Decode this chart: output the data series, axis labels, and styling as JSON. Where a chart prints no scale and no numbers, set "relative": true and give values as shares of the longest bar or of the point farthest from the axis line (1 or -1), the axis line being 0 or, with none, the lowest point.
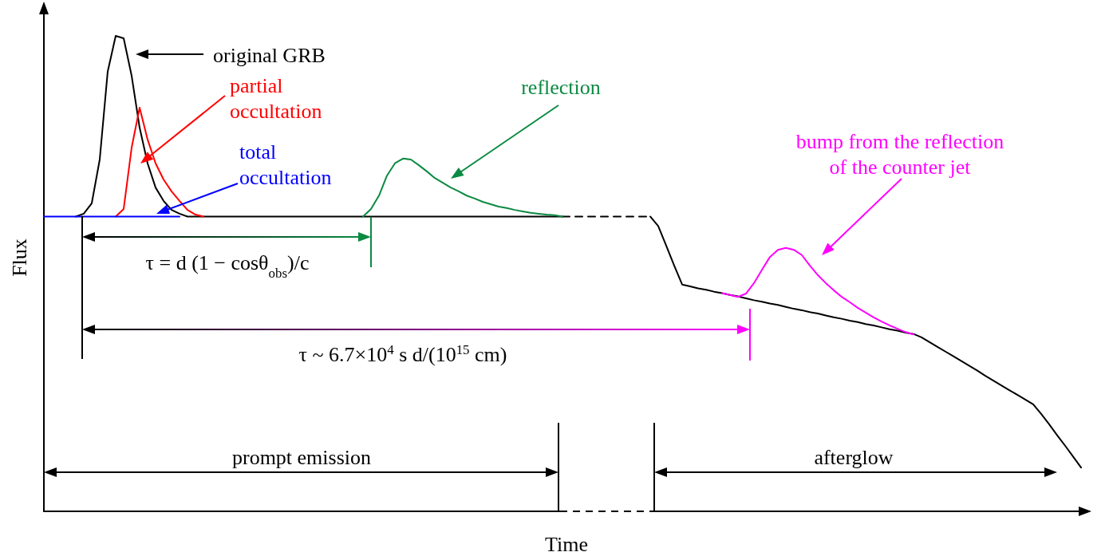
{
  "chart_data": {
    "type": "line",
    "relative": true,
    "marker": "none",
    "xlabel": "Time",
    "ylabel": "Flux",
    "categories": [
      null,
      null,
      null,
      null,
      null,
      null,
      null,
      null,
      null,
      null,
      null,
      null,
      null,
      null,
      null,
      null,
      null,
      null,
      null,
      null,
      null,
      null,
      null,
      null,
      null,
      null,
      null,
      null,
      null,
      null,
      null,
      null,
      null,
      null,
      null,
      null,
      null,
      null,
      null,
      null,
      null,
      null,
      null,
      null,
      null,
      null,
      null,
      null,
      null,
      null,
      null,
      null,
      null,
      null,
      null,
      null,
      null,
      null,
      null,
      null,
      null,
      null,
      null,
      null,
      null,
      null,
      null,
      null,
      null,
      null,
      null,
      null,
      null,
      null,
      null,
      null,
      null,
      null,
      null,
      null,
      null,
      null,
      null,
      null,
      null,
      null,
      null,
      null,
      null,
      null,
      null,
      null,
      null,
      null,
      null,
      null,
      null,
      null,
      null,
      null,
      null,
      null,
      null,
      null,
      null,
      null,
      null,
      null,
      null,
      null,
      null,
      null,
      null,
      null,
      null,
      null,
      null,
      null,
      null,
      null,
      null,
      null,
      null,
      null,
      null,
      null,
      null,
      null,
      null,
      null,
      null,
      null
    ],
    "series": [
      {
        "color": "#000000",
        "values": [
          null,
          null,
          null,
          null,
          0.62,
          0.626,
          0.648,
          0.74,
          0.925,
          1,
          0.995,
          0.916,
          0.807,
          0.732,
          0.681,
          0.653,
          0.634,
          0.626,
          0.62,
          0.62,
          0.62,
          0.62,
          0.62,
          0.62,
          0.62,
          0.62,
          0.62,
          0.62,
          0.62,
          0.62,
          0.62,
          0.62,
          0.62,
          0.62,
          0.62,
          0.62,
          0.62,
          0.62,
          0.62,
          0.62,
          0.62,
          0.62,
          0.62,
          0.62,
          0.62,
          0.62,
          0.62,
          0.62,
          0.62,
          0.62,
          0.62,
          0.62,
          0.62,
          0.62,
          0.62,
          0.62,
          0.62,
          0.62,
          0.62,
          0.62,
          0.62,
          0.62,
          0.62,
          0.62,
          0.62,
          0.62,
          null,
          null,
          null,
          null,
          null,
          null,
          null,
          null,
          null,
          null,
          null,
          null,
          null,
          null,
          null,
          null,
          null,
          null,
          null,
          null,
          null,
          null,
          null,
          null,
          null,
          null,
          null,
          null,
          null,
          null,
          null,
          null,
          null,
          null,
          null,
          null,
          null,
          null,
          null,
          null,
          null,
          null,
          null,
          null,
          null,
          null,
          null,
          null,
          null,
          null,
          null,
          null,
          null,
          null,
          null,
          null,
          null,
          null,
          null,
          null,
          null,
          null,
          null,
          null,
          null,
          null
        ]
      },
      {
        "color": "#000000",
        "line_style": "dashed",
        "values": [
          null,
          null,
          null,
          null,
          null,
          null,
          null,
          null,
          null,
          null,
          null,
          null,
          null,
          null,
          null,
          null,
          null,
          null,
          null,
          null,
          null,
          null,
          null,
          null,
          null,
          null,
          null,
          null,
          null,
          null,
          null,
          null,
          null,
          null,
          null,
          null,
          null,
          null,
          null,
          null,
          null,
          null,
          null,
          null,
          null,
          null,
          null,
          null,
          null,
          null,
          null,
          null,
          null,
          null,
          null,
          null,
          null,
          null,
          null,
          null,
          null,
          null,
          null,
          null,
          null,
          0.62,
          0.62,
          0.62,
          0.62,
          0.62,
          0.62,
          0.62,
          0.62,
          0.62,
          0.62,
          0.62,
          0.62,
          null,
          null,
          null,
          null,
          null,
          null,
          null,
          null,
          null,
          null,
          null,
          null,
          null,
          null,
          null,
          null,
          null,
          null,
          null,
          null,
          null,
          null,
          null,
          null,
          null,
          null,
          null,
          null,
          null,
          null,
          null,
          null,
          null,
          null,
          null,
          null,
          null,
          null,
          null,
          null,
          null,
          null,
          null,
          null,
          null,
          null,
          null,
          null,
          null,
          null,
          null,
          null,
          null,
          null,
          null
        ]
      },
      {
        "color": "#000000",
        "values": [
          null,
          null,
          null,
          null,
          null,
          null,
          null,
          null,
          null,
          null,
          null,
          null,
          null,
          null,
          null,
          null,
          null,
          null,
          null,
          null,
          null,
          null,
          null,
          null,
          null,
          null,
          null,
          null,
          null,
          null,
          null,
          null,
          null,
          null,
          null,
          null,
          null,
          null,
          null,
          null,
          null,
          null,
          null,
          null,
          null,
          null,
          null,
          null,
          null,
          null,
          null,
          null,
          null,
          null,
          null,
          null,
          null,
          null,
          null,
          null,
          null,
          null,
          null,
          null,
          null,
          null,
          null,
          null,
          null,
          null,
          null,
          null,
          null,
          null,
          null,
          null,
          0.62,
          0.6,
          0.559,
          0.517,
          0.477,
          0.473,
          0.469,
          0.466,
          0.462,
          0.459,
          0.455,
          0.452,
          0.448,
          0.444,
          0.441,
          0.437,
          0.434,
          0.43,
          0.426,
          0.423,
          0.419,
          0.416,
          0.412,
          0.408,
          0.405,
          0.401,
          0.398,
          0.394,
          0.391,
          0.387,
          0.383,
          0.38,
          0.376,
          0.373,
          0.366,
          0.356,
          0.346,
          0.336,
          0.326,
          0.316,
          0.306,
          0.296,
          0.285,
          0.275,
          0.265,
          0.255,
          0.245,
          0.235,
          0.225,
          0.205,
          0.183,
          0.16,
          0.138,
          0.115,
          0.092,
          null
        ]
      },
      {
        "color": "#0b8a42",
        "values": [
          null,
          null,
          null,
          null,
          null,
          null,
          null,
          null,
          null,
          null,
          null,
          null,
          null,
          null,
          null,
          null,
          null,
          null,
          null,
          null,
          null,
          null,
          null,
          null,
          null,
          null,
          null,
          null,
          null,
          null,
          null,
          null,
          null,
          null,
          null,
          null,
          null,
          null,
          null,
          null,
          0.62,
          0.636,
          0.664,
          0.706,
          0.732,
          0.742,
          0.74,
          0.728,
          0.715,
          0.701,
          0.691,
          0.681,
          0.673,
          0.664,
          0.658,
          0.651,
          0.646,
          0.641,
          0.638,
          0.634,
          0.631,
          0.628,
          0.626,
          0.624,
          0.623,
          0.62,
          null,
          null,
          null,
          null,
          null,
          null,
          null,
          null,
          null,
          null,
          null,
          null,
          null,
          null,
          null,
          null,
          null,
          null,
          null,
          null,
          null,
          null,
          null,
          null,
          null,
          null,
          null,
          null,
          null,
          null,
          null,
          null,
          null,
          null,
          null,
          null,
          null,
          null,
          null,
          null,
          null,
          null,
          null,
          null,
          null,
          null,
          null,
          null,
          null,
          null,
          null,
          null,
          null,
          null,
          null,
          null,
          null,
          null,
          null,
          null,
          null,
          null,
          null,
          null,
          null,
          null
        ]
      },
      {
        "color": "#ff00ff",
        "values": [
          null,
          null,
          null,
          null,
          null,
          null,
          null,
          null,
          null,
          null,
          null,
          null,
          null,
          null,
          null,
          null,
          null,
          null,
          null,
          null,
          null,
          null,
          null,
          null,
          null,
          null,
          null,
          null,
          null,
          null,
          null,
          null,
          null,
          null,
          null,
          null,
          null,
          null,
          null,
          null,
          null,
          null,
          null,
          null,
          null,
          null,
          null,
          null,
          null,
          null,
          null,
          null,
          null,
          null,
          null,
          null,
          null,
          null,
          null,
          null,
          null,
          null,
          null,
          null,
          null,
          null,
          null,
          null,
          null,
          null,
          null,
          null,
          null,
          null,
          null,
          null,
          null,
          null,
          null,
          null,
          null,
          null,
          null,
          null,
          null,
          0.459,
          0.455,
          0.451,
          0.458,
          0.48,
          0.508,
          0.535,
          0.55,
          0.554,
          0.55,
          0.539,
          0.517,
          0.497,
          0.48,
          0.465,
          0.451,
          0.44,
          0.428,
          0.418,
          0.408,
          0.399,
          0.391,
          0.384,
          0.377,
          0.372,
          null,
          null,
          null,
          null,
          null,
          null,
          null,
          null,
          null,
          null,
          null,
          null,
          null,
          null,
          null,
          null,
          null,
          null,
          null,
          null,
          null,
          null
        ]
      },
      {
        "color": "#ff0000",
        "values": [
          null,
          null,
          null,
          null,
          null,
          null,
          null,
          null,
          null,
          0.62,
          0.636,
          0.765,
          0.849,
          0.782,
          0.732,
          0.698,
          0.673,
          0.653,
          0.634,
          0.624,
          0.62,
          null,
          null,
          null,
          null,
          null,
          null,
          null,
          null,
          null,
          null,
          null,
          null,
          null,
          null,
          null,
          null,
          null,
          null,
          null,
          null,
          null,
          null,
          null,
          null,
          null,
          null,
          null,
          null,
          null,
          null,
          null,
          null,
          null,
          null,
          null,
          null,
          null,
          null,
          null,
          null,
          null,
          null,
          null,
          null,
          null,
          null,
          null,
          null,
          null,
          null,
          null,
          null,
          null,
          null,
          null,
          null,
          null,
          null,
          null,
          null,
          null,
          null,
          null,
          null,
          null,
          null,
          null,
          null,
          null,
          null,
          null,
          null,
          null,
          null,
          null,
          null,
          null,
          null,
          null,
          null,
          null,
          null,
          null,
          null,
          null,
          null,
          null,
          null,
          null,
          null,
          null,
          null,
          null,
          null,
          null,
          null,
          null,
          null,
          null,
          null,
          null,
          null,
          null,
          null,
          null,
          null,
          null,
          null,
          null,
          null,
          null
        ]
      },
      {
        "color": "#0000ff",
        "values": [
          0.62,
          0.62,
          0.62,
          0.62,
          0.62,
          0.62,
          0.62,
          0.62,
          0.62,
          0.62,
          0.62,
          0.62,
          0.62,
          0.62,
          0.62,
          0.62,
          0.62,
          0.62,
          null,
          null,
          null,
          null,
          null,
          null,
          null,
          null,
          null,
          null,
          null,
          null,
          null,
          null,
          null,
          null,
          null,
          null,
          null,
          null,
          null,
          null,
          null,
          null,
          null,
          null,
          null,
          null,
          null,
          null,
          null,
          null,
          null,
          null,
          null,
          null,
          null,
          null,
          null,
          null,
          null,
          null,
          null,
          null,
          null,
          null,
          null,
          null,
          null,
          null,
          null,
          null,
          null,
          null,
          null,
          null,
          null,
          null,
          null,
          null,
          null,
          null,
          null,
          null,
          null,
          null,
          null,
          null,
          null,
          null,
          null,
          null,
          null,
          null,
          null,
          null,
          null,
          null,
          null,
          null,
          null,
          null,
          null,
          null,
          null,
          null,
          null,
          null,
          null,
          null,
          null,
          null,
          null,
          null,
          null,
          null,
          null,
          null,
          null,
          null,
          null,
          null,
          null,
          null,
          null,
          null,
          null,
          null,
          null,
          null,
          null,
          null,
          null,
          null
        ]
      }
    ],
    "annotations": [
      "original GRB",
      "partial occultation",
      "total occultation",
      "reflection",
      "bump from the reflection of the counter jet",
      "τ = d (1 − cosθ$_{obs}$)/c",
      "τ ~ 6.7×10$^{4}$ s d/(10$^{15}$ cm)",
      "prompt emission",
      "afterglow"
    ]
  }
}
